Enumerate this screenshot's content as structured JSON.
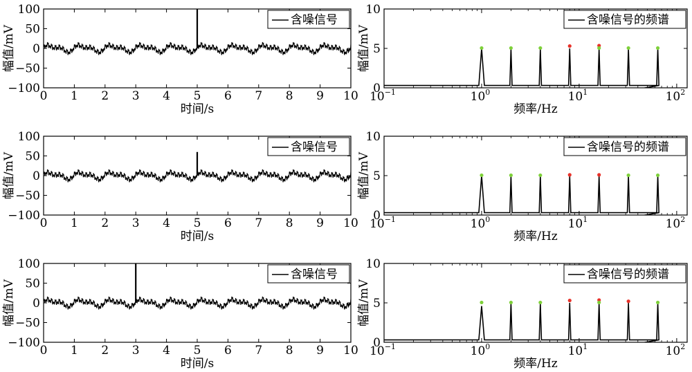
{
  "chart_data": [
    {
      "type": "line",
      "xlabel": "时间/s",
      "ylabel": "幅值/mV",
      "xlim": [
        0,
        10
      ],
      "ylim": [
        -100,
        100
      ],
      "xticks": [
        "0",
        "1",
        "2",
        "3",
        "4",
        "5",
        "6",
        "7",
        "8",
        "9",
        "10"
      ],
      "yticks": [
        "100",
        "50",
        "0",
        "−50",
        "−100"
      ],
      "legend": "含噪信号",
      "legend_position": "top-right",
      "series": [
        {
          "name": "含噪信号",
          "baseline": 0,
          "oscillation_amplitude": 12,
          "impulse": {
            "x": 5.0,
            "y": 100
          }
        }
      ]
    },
    {
      "type": "line",
      "xlabel": "频率/Hz",
      "ylabel": "幅值/mV",
      "xscale": "log",
      "xlim": [
        0.1,
        128
      ],
      "ylim": [
        0,
        10
      ],
      "xticks": [
        {
          "base": "10",
          "exp": "−1"
        },
        {
          "base": "10",
          "exp": "0"
        },
        {
          "base": "10",
          "exp": "1"
        },
        {
          "base": "10",
          "exp": "2"
        }
      ],
      "yticks": [
        "10",
        "5",
        "0"
      ],
      "legend": "含噪信号的频谱",
      "legend_position": "top-right",
      "series": [
        {
          "name": "含噪信号的频谱",
          "floor": 0.3,
          "peaks": [
            {
              "x": 1,
              "y": 5
            },
            {
              "x": 2,
              "y": 5
            },
            {
              "x": 4,
              "y": 5
            },
            {
              "x": 8,
              "y": 5
            },
            {
              "x": 16,
              "y": 5
            },
            {
              "x": 32,
              "y": 5
            },
            {
              "x": 64,
              "y": 5
            }
          ]
        }
      ],
      "markers": [
        {
          "x": 1,
          "y": 5.05,
          "color": "#7fd13b"
        },
        {
          "x": 2,
          "y": 5.05,
          "color": "#7fd13b"
        },
        {
          "x": 4,
          "y": 5.05,
          "color": "#7fd13b"
        },
        {
          "x": 8,
          "y": 5.3,
          "color": "#e8322a"
        },
        {
          "x": 16,
          "y": 5.35,
          "color": "#e8322a"
        },
        {
          "x": 16,
          "y": 5.05,
          "color": "#7fd13b"
        },
        {
          "x": 32,
          "y": 5.05,
          "color": "#7fd13b"
        },
        {
          "x": 64,
          "y": 5.05,
          "color": "#7fd13b"
        }
      ]
    },
    {
      "type": "line",
      "xlabel": "时间/s",
      "ylabel": "幅值/mV",
      "xlim": [
        0,
        10
      ],
      "ylim": [
        -100,
        100
      ],
      "xticks": [
        "0",
        "1",
        "2",
        "3",
        "4",
        "5",
        "6",
        "7",
        "8",
        "9",
        "10"
      ],
      "yticks": [
        "100",
        "50",
        "0",
        "−50",
        "−100"
      ],
      "legend": "含噪信号",
      "legend_position": "top-right",
      "series": [
        {
          "name": "含噪信号",
          "baseline": 0,
          "oscillation_amplitude": 12,
          "impulse": {
            "x": 5.0,
            "y": 60
          }
        }
      ]
    },
    {
      "type": "line",
      "xlabel": "频率/Hz",
      "ylabel": "幅值/mV",
      "xscale": "log",
      "xlim": [
        0.1,
        128
      ],
      "ylim": [
        0,
        10
      ],
      "xticks": [
        {
          "base": "10",
          "exp": "−1"
        },
        {
          "base": "10",
          "exp": "0"
        },
        {
          "base": "10",
          "exp": "1"
        },
        {
          "base": "10",
          "exp": "2"
        }
      ],
      "yticks": [
        "10",
        "5",
        "0"
      ],
      "legend": "含噪信号的频谱",
      "legend_position": "top-right",
      "series": [
        {
          "name": "含噪信号的频谱",
          "floor": 0.3,
          "peaks": [
            {
              "x": 1,
              "y": 5
            },
            {
              "x": 2,
              "y": 5
            },
            {
              "x": 4,
              "y": 5
            },
            {
              "x": 8,
              "y": 5
            },
            {
              "x": 16,
              "y": 5
            },
            {
              "x": 32,
              "y": 5
            },
            {
              "x": 64,
              "y": 5
            }
          ]
        }
      ],
      "markers": [
        {
          "x": 1,
          "y": 5.05,
          "color": "#7fd13b"
        },
        {
          "x": 2,
          "y": 5.05,
          "color": "#7fd13b"
        },
        {
          "x": 4,
          "y": 5.05,
          "color": "#7fd13b"
        },
        {
          "x": 8,
          "y": 5.1,
          "color": "#e8322a"
        },
        {
          "x": 16,
          "y": 5.1,
          "color": "#e8322a"
        },
        {
          "x": 32,
          "y": 5.05,
          "color": "#7fd13b"
        },
        {
          "x": 64,
          "y": 5.05,
          "color": "#7fd13b"
        }
      ]
    },
    {
      "type": "line",
      "xlabel": "时间/s",
      "ylabel": "幅值/mV",
      "xlim": [
        0,
        10
      ],
      "ylim": [
        -100,
        100
      ],
      "xticks": [
        "0",
        "1",
        "2",
        "3",
        "4",
        "5",
        "6",
        "7",
        "8",
        "9",
        "10"
      ],
      "yticks": [
        "100",
        "50",
        "0",
        "−50",
        "−100"
      ],
      "legend": "含噪信号",
      "legend_position": "top-right",
      "series": [
        {
          "name": "含噪信号",
          "baseline": 0,
          "oscillation_amplitude": 12,
          "impulse": {
            "x": 3.0,
            "y": 100
          }
        }
      ]
    },
    {
      "type": "line",
      "xlabel": "频率/Hz",
      "ylabel": "幅值/mV",
      "xscale": "log",
      "xlim": [
        0.1,
        128
      ],
      "ylim": [
        0,
        10
      ],
      "xticks": [
        {
          "base": "10",
          "exp": "−1"
        },
        {
          "base": "10",
          "exp": "0"
        },
        {
          "base": "10",
          "exp": "1"
        },
        {
          "base": "10",
          "exp": "2"
        }
      ],
      "yticks": [
        "10",
        "5",
        "0"
      ],
      "legend": "含噪信号的频谱",
      "legend_position": "top-right",
      "series": [
        {
          "name": "含噪信号的频谱",
          "floor": 0.3,
          "peaks": [
            {
              "x": 1,
              "y": 4.6
            },
            {
              "x": 2,
              "y": 5
            },
            {
              "x": 4,
              "y": 5
            },
            {
              "x": 8,
              "y": 5
            },
            {
              "x": 16,
              "y": 5
            },
            {
              "x": 32,
              "y": 5
            },
            {
              "x": 64,
              "y": 5
            }
          ]
        }
      ],
      "markers": [
        {
          "x": 1,
          "y": 5.05,
          "color": "#7fd13b"
        },
        {
          "x": 2,
          "y": 5.05,
          "color": "#7fd13b"
        },
        {
          "x": 4,
          "y": 5.05,
          "color": "#7fd13b"
        },
        {
          "x": 8,
          "y": 5.3,
          "color": "#e8322a"
        },
        {
          "x": 16,
          "y": 5.35,
          "color": "#e8322a"
        },
        {
          "x": 16,
          "y": 5.05,
          "color": "#7fd13b"
        },
        {
          "x": 32,
          "y": 5.2,
          "color": "#e8322a"
        },
        {
          "x": 64,
          "y": 5.05,
          "color": "#7fd13b"
        }
      ]
    }
  ]
}
